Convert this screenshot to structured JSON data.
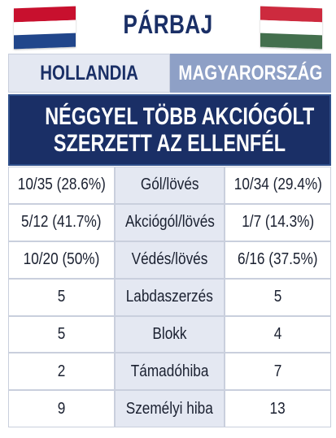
{
  "header": {
    "title": "PÁRBAJ",
    "flag_left_colors": [
      "#c8102e",
      "#ffffff",
      "#21468b"
    ],
    "flag_right_colors": [
      "#cd2a3e",
      "#ffffff",
      "#436f4d"
    ]
  },
  "teams": {
    "left": "HOLLANDIA",
    "right": "MAGYARORSZÁG"
  },
  "banner": {
    "line1": "NÉGGYEL TÖBB AKCIÓGÓLT",
    "line2": "SZERZETT AZ ELLENFÉL"
  },
  "stats": [
    {
      "left": "10/35 (28.6%)",
      "label": "Gól/lövés",
      "right": "10/34 (29.4%)"
    },
    {
      "left": "5/12 (41.7%)",
      "label": "Akciógól/lövés",
      "right": "1/7 (14.3%)"
    },
    {
      "left": "10/20 (50%)",
      "label": "Védés/lövés",
      "right": "6/16 (37.5%)"
    },
    {
      "left": "5",
      "label": "Labdaszerzés",
      "right": "5"
    },
    {
      "left": "5",
      "label": "Blokk",
      "right": "4"
    },
    {
      "left": "2",
      "label": "Támadóhiba",
      "right": "7"
    },
    {
      "left": "9",
      "label": "Személyi hiba",
      "right": "13"
    }
  ]
}
